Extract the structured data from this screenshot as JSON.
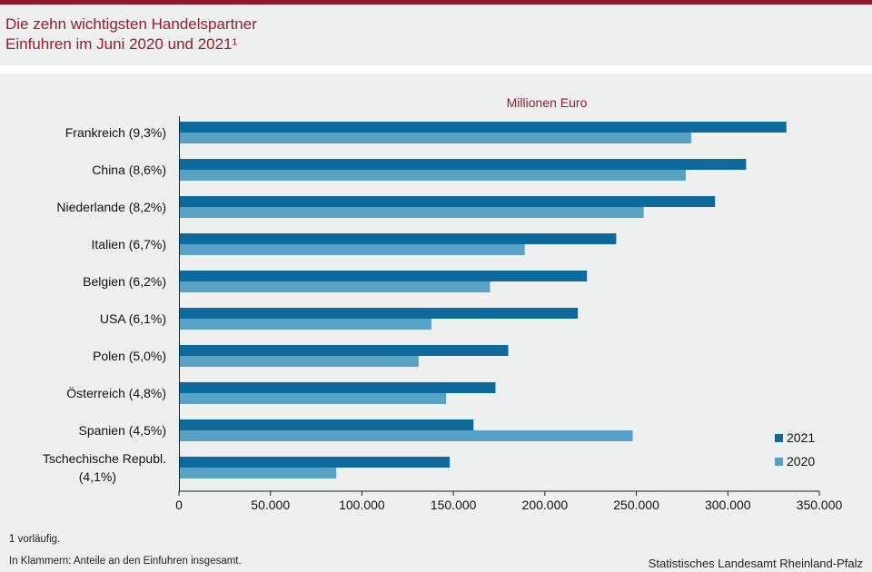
{
  "header": {
    "title_line1": "Die zehn wichtigsten Handelspartner",
    "title_line2": "Einfuhren im Juni 2020 und 2021¹"
  },
  "footer": {
    "footnote1": "1 vorläufig.",
    "footnote2": "In Klammern: Anteile an den Einfuhren insgesamt.",
    "source": "Statistisches Landesamt Rheinland-Pfalz"
  },
  "chart_data": {
    "type": "bar",
    "orientation": "horizontal",
    "unit_label": "Millionen Euro",
    "categories": [
      [
        "Frankreich (9,3%)"
      ],
      [
        "China (8,6%)"
      ],
      [
        "Niederlande (8,2%)"
      ],
      [
        "Italien (6,7%)"
      ],
      [
        "Belgien (6,2%)"
      ],
      [
        "USA (6,1%)"
      ],
      [
        "Polen (5,0%)"
      ],
      [
        "Österreich (4,8%)"
      ],
      [
        "Spanien (4,5%)"
      ],
      [
        "Tschechische Republ.",
        "(4,1%)"
      ]
    ],
    "series": [
      {
        "name": "2021",
        "color": "#0e6a9c",
        "values": [
          332000,
          310000,
          293000,
          239000,
          223000,
          218000,
          180000,
          173000,
          161000,
          148000
        ]
      },
      {
        "name": "2020",
        "color": "#58a2c6",
        "values": [
          280000,
          277000,
          254000,
          189000,
          170000,
          138000,
          131000,
          146000,
          248000,
          86000
        ]
      }
    ],
    "xlim": [
      0,
      350000
    ],
    "xticks": [
      0,
      50000,
      100000,
      150000,
      200000,
      250000,
      300000,
      350000
    ],
    "xtick_labels": [
      "0",
      "50.000",
      "100.000",
      "150.000",
      "200.000",
      "250.000",
      "300.000",
      "350.000"
    ],
    "legend_position": "bottom-right",
    "grid": false
  }
}
